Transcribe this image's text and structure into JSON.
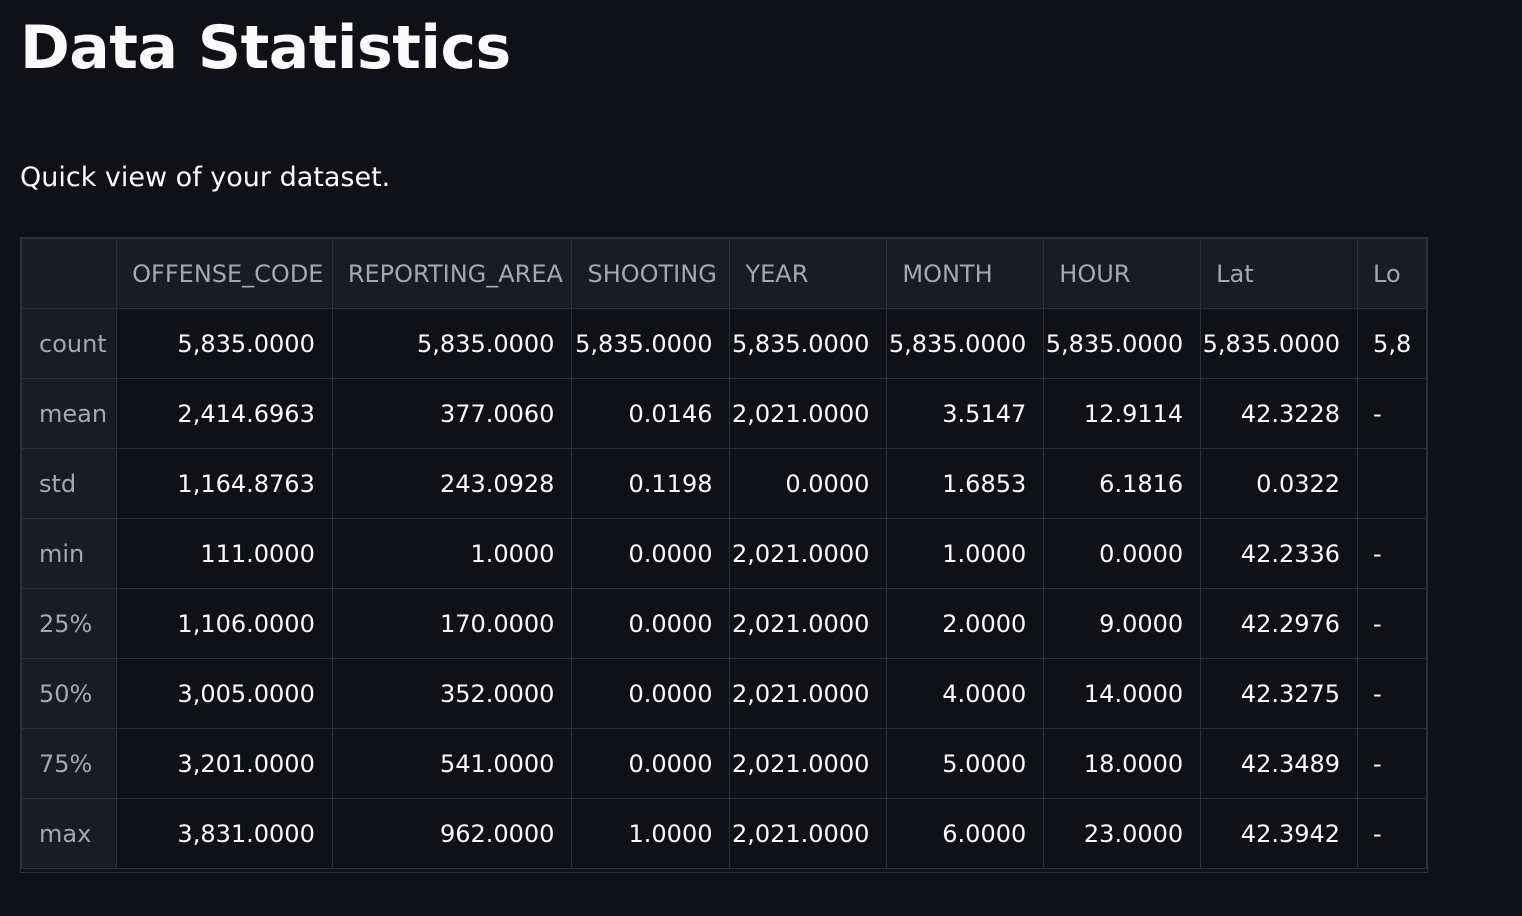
{
  "page": {
    "title": "Data Statistics",
    "subtitle": "Quick view of your dataset."
  },
  "table": {
    "columns": [
      "",
      "OFFENSE_CODE",
      "REPORTING_AREA",
      "SHOOTING",
      "YEAR",
      "MONTH",
      "HOUR",
      "Lat",
      "Lo"
    ],
    "rows": [
      {
        "label": "count",
        "values": [
          "5,835.0000",
          "5,835.0000",
          "5,835.0000",
          "5,835.0000",
          "5,835.0000",
          "5,835.0000",
          "5,835.0000",
          "5,8"
        ]
      },
      {
        "label": "mean",
        "values": [
          "2,414.6963",
          "377.0060",
          "0.0146",
          "2,021.0000",
          "3.5147",
          "12.9114",
          "42.3228",
          "-"
        ]
      },
      {
        "label": "std",
        "values": [
          "1,164.8763",
          "243.0928",
          "0.1198",
          "0.0000",
          "1.6853",
          "6.1816",
          "0.0322",
          ""
        ]
      },
      {
        "label": "min",
        "values": [
          "111.0000",
          "1.0000",
          "0.0000",
          "2,021.0000",
          "1.0000",
          "0.0000",
          "42.2336",
          "-"
        ]
      },
      {
        "label": "25%",
        "values": [
          "1,106.0000",
          "170.0000",
          "0.0000",
          "2,021.0000",
          "2.0000",
          "9.0000",
          "42.2976",
          "-"
        ]
      },
      {
        "label": "50%",
        "values": [
          "3,005.0000",
          "352.0000",
          "0.0000",
          "2,021.0000",
          "4.0000",
          "14.0000",
          "42.3275",
          "-"
        ]
      },
      {
        "label": "75%",
        "values": [
          "3,201.0000",
          "541.0000",
          "0.0000",
          "2,021.0000",
          "5.0000",
          "18.0000",
          "42.3489",
          "-"
        ]
      },
      {
        "label": "max",
        "values": [
          "3,831.0000",
          "962.0000",
          "1.0000",
          "2,021.0000",
          "6.0000",
          "23.0000",
          "42.3942",
          "-"
        ]
      }
    ]
  }
}
